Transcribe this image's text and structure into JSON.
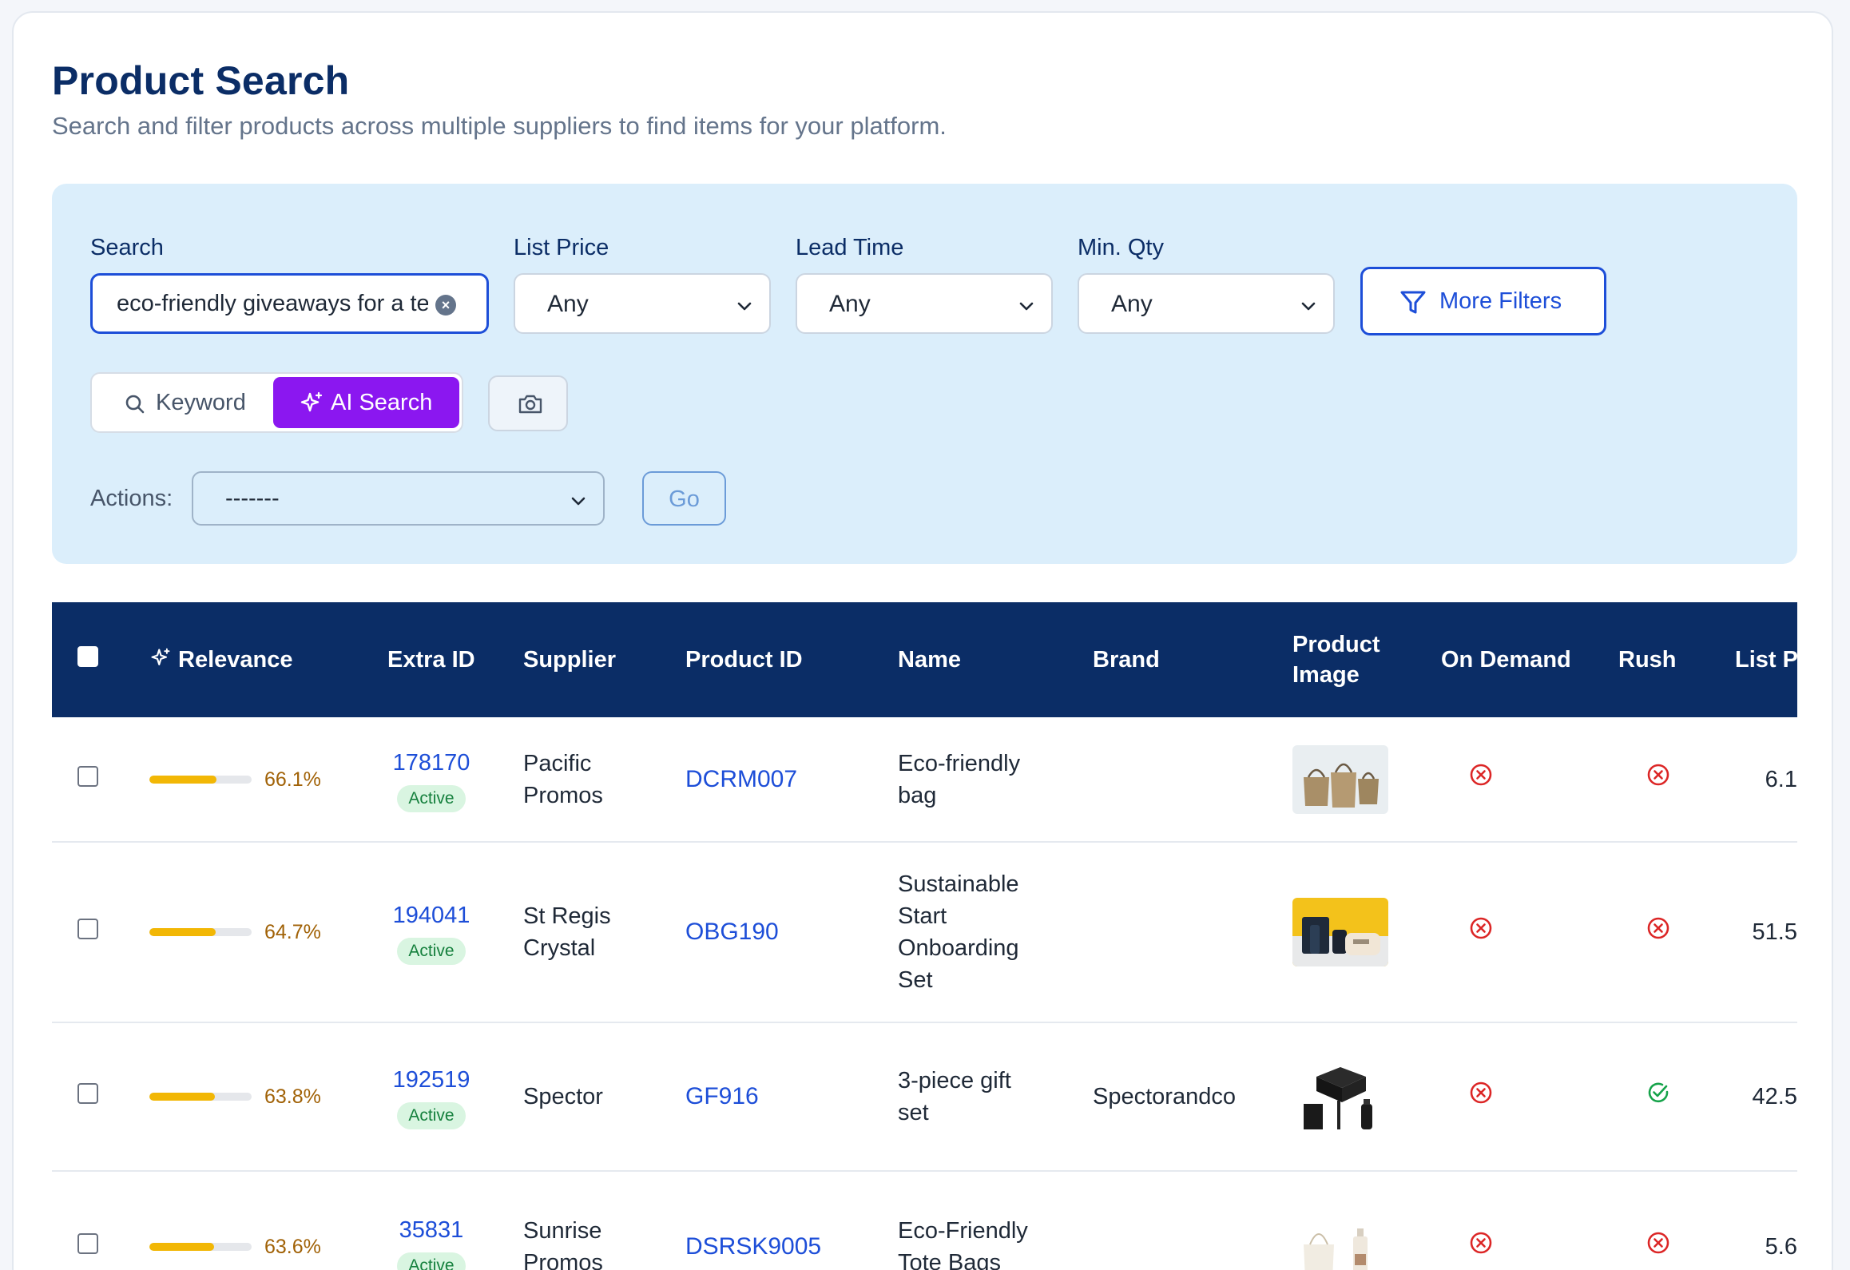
{
  "page": {
    "title": "Product Search",
    "subtitle": "Search and filter products across multiple suppliers to find items for your platform."
  },
  "filters": {
    "search_label": "Search",
    "search_value": "eco-friendly giveaways for a tech conference",
    "list_price_label": "List Price",
    "list_price_value": "Any",
    "lead_time_label": "Lead Time",
    "lead_time_value": "Any",
    "min_qty_label": "Min. Qty",
    "min_qty_value": "Any",
    "more_filters_label": "More Filters",
    "mode_keyword_label": "Keyword",
    "mode_ai_label": "AI Search",
    "actions_label": "Actions:",
    "actions_value": "-------",
    "go_label": "Go"
  },
  "table": {
    "headers": {
      "relevance": "Relevance",
      "extra_id": "Extra ID",
      "supplier": "Supplier",
      "product_id": "Product ID",
      "name": "Name",
      "brand": "Brand",
      "product_image": "Product Image",
      "on_demand": "On Demand",
      "rush": "Rush",
      "list_price": "List Pric"
    },
    "rows": [
      {
        "relevance": 0.661,
        "relevance_text": "66.1%",
        "extra_id": "178170",
        "status": "Active",
        "supplier": "Pacific Promos",
        "product_id": "DCRM007",
        "name": "Eco-friendly bag",
        "brand": "",
        "image": "jute-bags-photo",
        "on_demand": "no",
        "rush": "no",
        "list_price": "6.1"
      },
      {
        "relevance": 0.647,
        "relevance_text": "64.7%",
        "extra_id": "194041",
        "status": "Active",
        "supplier": "St Regis Crystal",
        "product_id": "OBG190",
        "name": "Sustainable Start Onboarding Set",
        "brand": "",
        "image": "onboarding-set-photo",
        "on_demand": "no",
        "rush": "no",
        "list_price": "51.5"
      },
      {
        "relevance": 0.638,
        "relevance_text": "63.8%",
        "extra_id": "192519",
        "status": "Active",
        "supplier": "Spector",
        "product_id": "GF916",
        "name": "3-piece gift set",
        "brand": "Spectorandco",
        "image": "gift-set-photo",
        "on_demand": "no",
        "rush": "yes",
        "list_price": "42.5"
      },
      {
        "relevance": 0.636,
        "relevance_text": "63.6%",
        "extra_id": "35831",
        "status": "Active",
        "supplier": "Sunrise Promos",
        "product_id": "DSRSK9005",
        "name": "Eco-Friendly Tote Bags",
        "brand": "",
        "image": "tote-bags-photo",
        "on_demand": "no",
        "rush": "no",
        "list_price": "5.6"
      }
    ]
  },
  "colors": {
    "navy": "#0b2d66",
    "accent_blue": "#1d4ed8",
    "ai_purple": "#8b17f0",
    "panel_bg": "#dbeefb",
    "relevance_bar": "#f2b705",
    "no_red": "#dc2626",
    "yes_green": "#16a34a"
  }
}
